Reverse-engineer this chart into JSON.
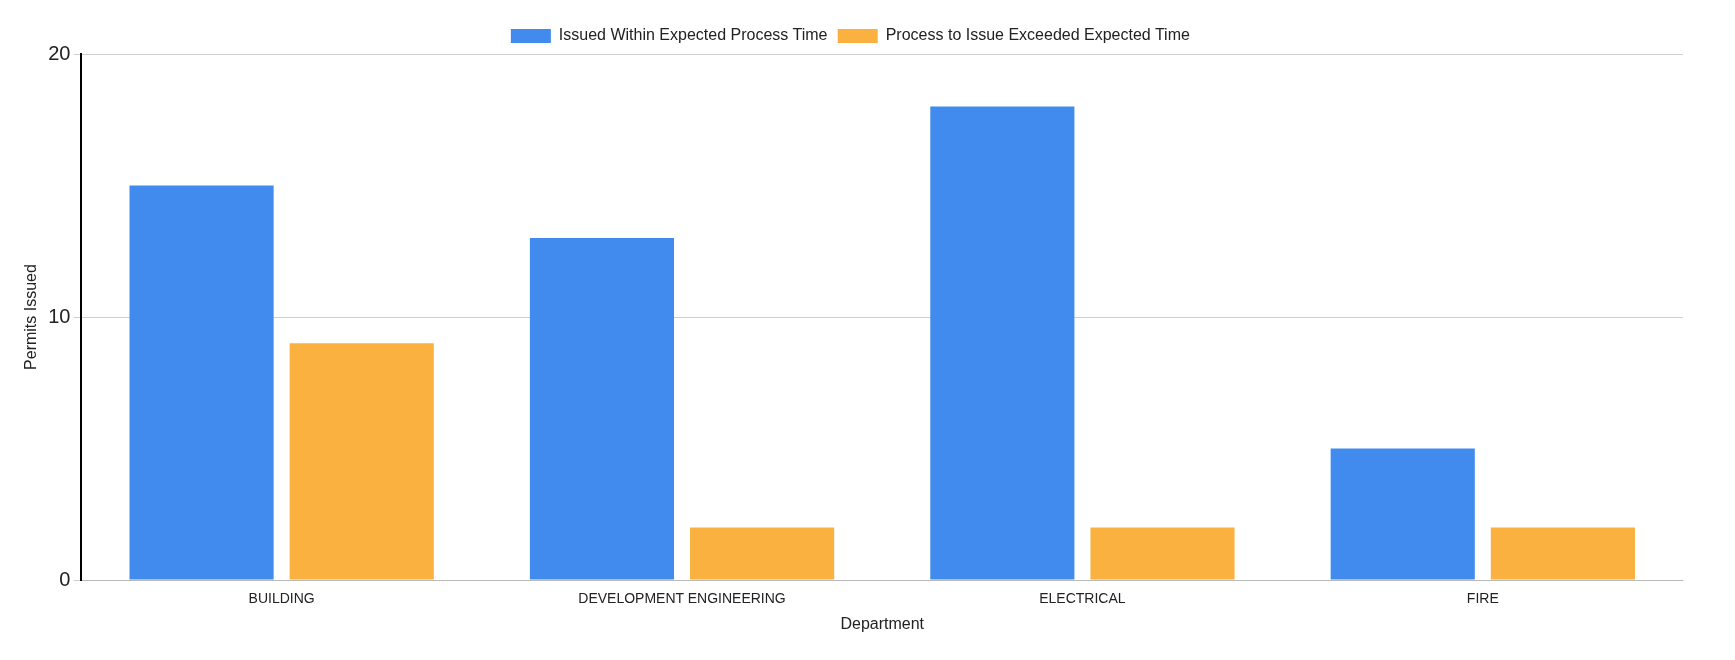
{
  "chart_data": {
    "type": "bar",
    "xlabel": "Department",
    "ylabel": "Permits Issued",
    "categories": [
      "BUILDING",
      "DEVELOPMENT ENGINEERING",
      "ELECTRICAL",
      "FIRE"
    ],
    "series": [
      {
        "name": "Issued Within Expected Process Time",
        "color": "#418bef",
        "values": [
          15,
          13,
          18,
          5
        ]
      },
      {
        "name": "Process to Issue Exceeded Expected Time",
        "color": "#fab13f",
        "values": [
          9,
          2,
          2,
          2
        ]
      }
    ],
    "ylim": [
      0,
      20
    ],
    "yticks": [
      0,
      10,
      20
    ],
    "grid": "y",
    "legend": "top"
  }
}
